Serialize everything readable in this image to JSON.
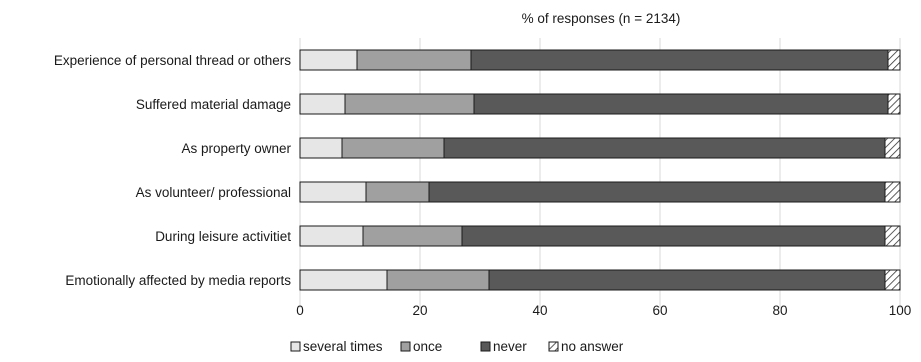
{
  "chart_data": {
    "type": "bar",
    "orientation": "horizontal",
    "stacked": true,
    "title": "% of responses (n = 2134)",
    "categories": [
      "Experience of personal thread or others",
      "Suffered material damage",
      "As property owner",
      "As volunteer/ professional",
      "During leisure activitiet",
      "Emotionally affected by media reports"
    ],
    "series": [
      {
        "name": "several times",
        "color": "#e6e6e6",
        "values": [
          9.5,
          7.5,
          7.0,
          11.0,
          10.5,
          14.5
        ]
      },
      {
        "name": "once",
        "color": "#a0a0a0",
        "values": [
          19.0,
          21.5,
          17.0,
          10.5,
          16.5,
          17.0
        ]
      },
      {
        "name": "never",
        "color": "#595959",
        "values": [
          69.5,
          69.0,
          73.5,
          76.0,
          70.5,
          66.0
        ]
      },
      {
        "name": "no answer",
        "color": "#ffffff",
        "pattern": "hatched",
        "values": [
          2.0,
          2.0,
          2.5,
          2.5,
          2.5,
          2.5
        ]
      }
    ],
    "xlim": [
      0,
      100
    ],
    "xticks": [
      "0",
      "20",
      "40",
      "60",
      "80",
      "100"
    ],
    "grid": true,
    "legend_position": "bottom"
  }
}
